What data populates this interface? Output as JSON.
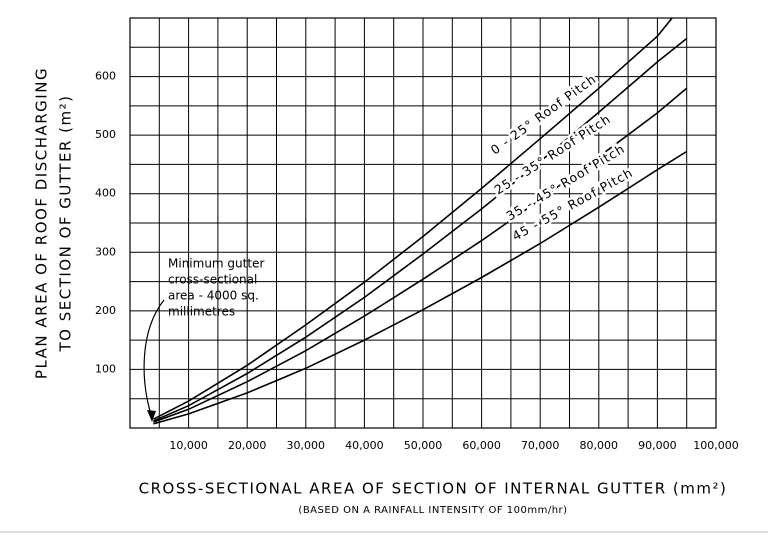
{
  "chart_data": {
    "type": "line",
    "xlabel": "CROSS-SECTIONAL AREA OF SECTION OF INTERNAL GUTTER (mm²)",
    "subtitle": "(BASED ON A RAINFALL INTENSITY OF 100mm/hr)",
    "ylabel": [
      "PLAN AREA OF ROOF DISCHARGING",
      "TO SECTION OF GUTTER (m²)"
    ],
    "xlim": [
      0,
      100000
    ],
    "ylim": [
      0,
      700
    ],
    "xticks": [
      {
        "value": 10000,
        "label": "10,000"
      },
      {
        "value": 20000,
        "label": "20,000"
      },
      {
        "value": 30000,
        "label": "30,000"
      },
      {
        "value": 40000,
        "label": "40,000"
      },
      {
        "value": 50000,
        "label": "50,000"
      },
      {
        "value": 60000,
        "label": "60,000"
      },
      {
        "value": 70000,
        "label": "70,000"
      },
      {
        "value": 80000,
        "label": "80,000"
      },
      {
        "value": 90000,
        "label": "90,000"
      },
      {
        "value": 100000,
        "label": "100,000"
      }
    ],
    "yticks": [
      100,
      200,
      300,
      400,
      500,
      600
    ],
    "grid": true,
    "xgrid": [
      5000,
      10000,
      15000,
      20000,
      25000,
      30000,
      35000,
      40000,
      45000,
      50000,
      55000,
      60000,
      65000,
      70000,
      75000,
      80000,
      85000,
      90000,
      95000
    ],
    "ygrid": [
      50,
      100,
      150,
      200,
      250,
      300,
      350,
      400,
      450,
      500,
      550,
      600,
      650
    ],
    "series": [
      {
        "name": "0 - 25° Roof Pitch",
        "color": "#000000",
        "x": [
          4000,
          10000,
          20000,
          30000,
          40000,
          50000,
          60000,
          70000,
          80000,
          90000,
          92500
        ],
        "values": [
          15,
          46,
          107,
          176,
          249,
          327,
          409,
          494,
          580,
          669,
          700
        ]
      },
      {
        "name": "25 - 35° Roof Pitch",
        "color": "#000000",
        "x": [
          4000,
          10000,
          20000,
          30000,
          40000,
          50000,
          60000,
          70000,
          80000,
          90000,
          95000
        ],
        "values": [
          12,
          38,
          93,
          155,
          223,
          297,
          374,
          455,
          539,
          625,
          665
        ]
      },
      {
        "name": "35 - 45° Roof Pitch",
        "color": "#000000",
        "x": [
          4000,
          10000,
          20000,
          30000,
          40000,
          50000,
          60000,
          70000,
          80000,
          90000,
          95000
        ],
        "values": [
          10,
          32,
          79,
          132,
          191,
          254,
          320,
          390,
          463,
          538,
          580
        ]
      },
      {
        "name": "45 - 55° Roof Pitch",
        "color": "#000000",
        "x": [
          4000,
          10000,
          20000,
          30000,
          40000,
          50000,
          60000,
          70000,
          80000,
          90000,
          95000
        ],
        "values": [
          7,
          24,
          60,
          102,
          150,
          202,
          257,
          315,
          377,
          441,
          472
        ]
      }
    ],
    "annotation": [
      "Minimum gutter",
      "cross-sectional",
      "area - 4000 sq.",
      "millimetres"
    ]
  }
}
